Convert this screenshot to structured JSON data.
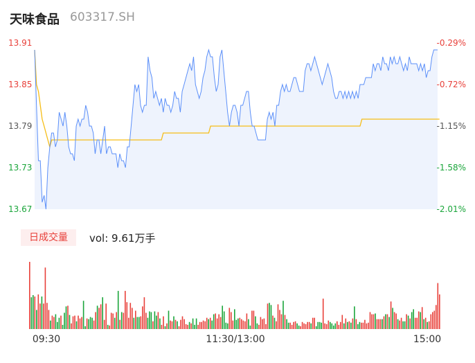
{
  "header": {
    "name": "天味食品",
    "code": "603317.SH"
  },
  "volume_panel": {
    "tab_label": "日成交量",
    "vol_label": "vol: 9.61万手"
  },
  "colors": {
    "price": "#5b8ff9",
    "avg": "#f6bd16",
    "up": "#e8403a",
    "down": "#1aa53a",
    "fill": "#eef3fd"
  },
  "chart_data": [
    {
      "type": "line",
      "title": "",
      "y_left_ticks": [
        "13.91",
        "13.85",
        "13.79",
        "13.73",
        "13.67"
      ],
      "y_right_ticks": [
        "-0.29%",
        "-0.72%",
        "-1.15%",
        "-1.58%",
        "-2.01%"
      ],
      "x_ticks": [
        "09:30",
        "11:30/13:00",
        "15:00"
      ],
      "ylim": [
        13.67,
        13.91
      ],
      "series": [
        {
          "values": [
            13.9,
            13.82,
            13.74,
            13.74,
            13.68,
            13.69,
            13.67,
            13.73,
            13.76,
            13.78,
            13.78,
            13.76,
            13.77,
            13.81,
            13.8,
            13.79,
            13.81,
            13.79,
            13.76,
            13.75,
            13.75,
            13.74,
            13.79,
            13.8,
            13.79,
            13.8,
            13.8,
            13.82,
            13.81,
            13.79,
            13.79,
            13.78,
            13.75,
            13.77,
            13.77,
            13.75,
            13.77,
            13.79,
            13.75,
            13.76,
            13.76,
            13.75,
            13.75,
            13.75,
            13.73,
            13.75,
            13.74,
            13.74,
            13.73,
            13.76,
            13.76,
            13.79,
            13.82,
            13.85,
            13.84,
            13.85,
            13.82,
            13.81,
            13.82,
            13.82,
            13.89,
            13.87,
            13.86,
            13.83,
            13.84,
            13.83,
            13.82,
            13.83,
            13.81,
            13.83,
            13.82,
            13.82,
            13.81,
            13.82,
            13.84,
            13.83,
            13.83,
            13.81,
            13.84,
            13.85,
            13.86,
            13.87,
            13.88,
            13.87,
            13.89,
            13.85,
            13.84,
            13.83,
            13.84,
            13.86,
            13.87,
            13.89,
            13.9,
            13.89,
            13.89,
            13.86,
            13.84,
            13.85,
            13.89,
            13.9,
            13.87,
            13.84,
            13.81,
            13.79,
            13.81,
            13.82,
            13.82,
            13.81,
            13.79,
            13.82,
            13.82,
            13.83,
            13.84,
            13.84,
            13.81,
            13.79,
            13.79,
            13.78,
            13.77,
            13.77,
            13.77,
            13.77,
            13.77,
            13.8,
            13.81,
            13.8,
            13.81,
            13.79,
            13.82,
            13.82,
            13.84,
            13.85,
            13.84,
            13.85,
            13.84,
            13.84,
            13.85,
            13.86,
            13.86,
            13.85,
            13.84,
            13.84,
            13.84,
            13.87,
            13.88,
            13.88,
            13.87,
            13.88,
            13.89,
            13.88,
            13.87,
            13.86,
            13.85,
            13.86,
            13.87,
            13.88,
            13.87,
            13.86,
            13.84,
            13.83,
            13.83,
            13.84,
            13.84,
            13.83,
            13.84,
            13.83,
            13.84,
            13.83,
            13.84,
            13.83,
            13.84,
            13.83,
            13.85,
            13.85,
            13.85,
            13.86,
            13.86,
            13.86,
            13.86,
            13.88,
            13.87,
            13.88,
            13.88,
            13.87,
            13.89,
            13.88,
            13.88,
            13.87,
            13.89,
            13.88,
            13.89,
            13.88,
            13.88,
            13.89,
            13.88,
            13.87,
            13.88,
            13.87,
            13.89,
            13.88,
            13.88,
            13.88,
            13.88,
            13.87,
            13.88,
            13.87,
            13.88,
            13.86,
            13.87,
            13.87,
            13.89,
            13.9,
            13.9,
            13.9
          ]
        },
        {
          "values": [
            13.9,
            13.85,
            13.84,
            13.82,
            13.8,
            13.79,
            13.78,
            13.77,
            13.76,
            13.77,
            13.77,
            13.77,
            13.77,
            13.77,
            13.77,
            13.77,
            13.77,
            13.77,
            13.77,
            13.77,
            13.77,
            13.77,
            13.77,
            13.77,
            13.77,
            13.77,
            13.77,
            13.77,
            13.77,
            13.77,
            13.77,
            13.77,
            13.77,
            13.77,
            13.77,
            13.77,
            13.77,
            13.77,
            13.77,
            13.77,
            13.77,
            13.77,
            13.77,
            13.77,
            13.77,
            13.77,
            13.77,
            13.77,
            13.77,
            13.77,
            13.77,
            13.77,
            13.77,
            13.77,
            13.77,
            13.77,
            13.77,
            13.77,
            13.77,
            13.77,
            13.77,
            13.77,
            13.77,
            13.77,
            13.77,
            13.77,
            13.77,
            13.77,
            13.78,
            13.78,
            13.78,
            13.78,
            13.78,
            13.78,
            13.78,
            13.78,
            13.78,
            13.78,
            13.78,
            13.78,
            13.78,
            13.78,
            13.78,
            13.78,
            13.78,
            13.78,
            13.78,
            13.78,
            13.78,
            13.78,
            13.78,
            13.78,
            13.78,
            13.79,
            13.79,
            13.79,
            13.79,
            13.79,
            13.79,
            13.79,
            13.79,
            13.79,
            13.79,
            13.79,
            13.79,
            13.79,
            13.79,
            13.79,
            13.79,
            13.79,
            13.79,
            13.79,
            13.79,
            13.79,
            13.79,
            13.79,
            13.79,
            13.79,
            13.79,
            13.79,
            13.79,
            13.79,
            13.79,
            13.79,
            13.79,
            13.79,
            13.79,
            13.79,
            13.79,
            13.79,
            13.79,
            13.79,
            13.79,
            13.79,
            13.79,
            13.79,
            13.79,
            13.79,
            13.79,
            13.79,
            13.79,
            13.79,
            13.79,
            13.79,
            13.79,
            13.79,
            13.79,
            13.79,
            13.79,
            13.79,
            13.79,
            13.79,
            13.79,
            13.79,
            13.79,
            13.79,
            13.79,
            13.79,
            13.79,
            13.79,
            13.79,
            13.79,
            13.79,
            13.79,
            13.79,
            13.79,
            13.79,
            13.79,
            13.79,
            13.79,
            13.79,
            13.79,
            13.79,
            13.8,
            13.8,
            13.8,
            13.8,
            13.8,
            13.8,
            13.8,
            13.8,
            13.8,
            13.8,
            13.8,
            13.8,
            13.8,
            13.8,
            13.8,
            13.8,
            13.8,
            13.8,
            13.8,
            13.8,
            13.8,
            13.8,
            13.8,
            13.8,
            13.8,
            13.8,
            13.8,
            13.8,
            13.8,
            13.8,
            13.8,
            13.8,
            13.8,
            13.8,
            13.8,
            13.8,
            13.8,
            13.8,
            13.8,
            13.8,
            13.8,
            13.8
          ]
        }
      ]
    },
    {
      "type": "bar",
      "title": "",
      "series": [
        {
          "values": [
            95,
            45,
            48,
            46,
            27,
            49,
            36,
            46,
            36,
            87,
            37,
            27,
            12,
            19,
            17,
            21,
            10,
            16,
            19,
            6,
            23,
            32,
            33,
            20,
            8,
            18,
            19,
            11,
            19,
            15,
            17,
            40,
            4,
            15,
            14,
            17,
            16,
            12,
            24,
            33,
            30,
            35,
            45,
            13,
            36,
            6,
            5,
            23,
            22,
            16,
            24,
            54,
            13,
            24,
            23,
            54,
            38,
            16,
            37,
            30,
            16,
            26,
            17,
            17,
            18,
            32,
            45,
            23,
            16,
            25,
            24,
            11,
            25,
            19,
            24,
            15,
            6,
            18,
            4,
            8,
            26,
            12,
            11,
            18,
            13,
            11,
            4,
            13,
            18,
            14,
            7,
            6,
            10,
            8,
            15,
            6,
            15,
            6,
            10,
            10,
            12,
            11,
            16,
            14,
            16,
            12,
            21,
            22,
            15,
            21,
            17,
            33,
            25,
            9,
            8,
            30,
            24,
            12,
            28,
            13,
            15,
            16,
            14,
            12,
            11,
            22,
            14,
            5,
            26,
            26,
            18,
            8,
            6,
            17,
            14,
            15,
            7,
            36,
            37,
            34,
            19,
            16,
            11,
            35,
            27,
            21,
            40,
            20,
            14,
            9,
            9,
            6,
            10,
            11,
            8,
            5,
            4,
            10,
            8,
            7,
            10,
            10,
            8,
            16,
            16,
            4,
            10,
            10,
            9,
            43,
            8,
            7,
            12,
            10,
            8,
            5,
            8,
            11,
            6,
            10,
            20,
            8,
            15,
            10,
            11,
            9,
            15,
            32,
            14,
            7,
            10,
            9,
            9,
            13,
            8,
            9,
            24,
            21,
            21,
            22,
            14,
            14,
            14,
            14,
            18,
            21,
            21,
            17,
            39,
            30,
            24,
            22,
            14,
            12,
            16,
            11,
            11,
            21,
            19,
            15,
            24,
            28,
            16,
            16,
            25,
            24,
            31,
            14,
            16,
            10,
            11,
            21,
            24,
            26,
            34,
            65,
            49
          ]
        }
      ]
    }
  ]
}
